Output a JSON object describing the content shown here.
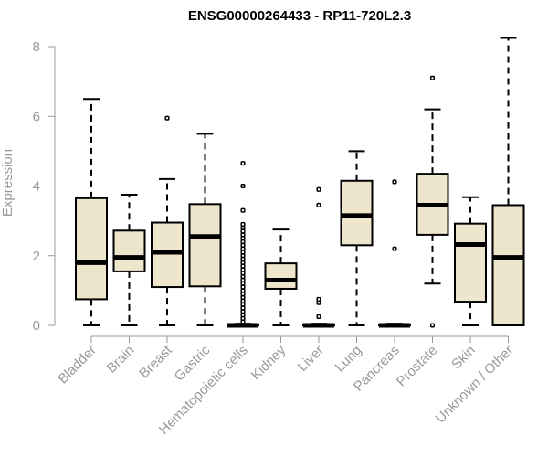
{
  "chart_data": {
    "type": "boxplot",
    "title": "ENSG00000264433 - RP11-720L2.3",
    "xlabel": "",
    "ylabel": "Expression",
    "ylim": [
      0,
      8
    ],
    "yticks": [
      0,
      2,
      4,
      6,
      8
    ],
    "grid": false,
    "box_fill": "#ede6cc",
    "box_stroke": "#000000",
    "axis_color": "#999999",
    "categories": [
      "Bladder",
      "Brain",
      "Breast",
      "Gastric",
      "Hematopoietic cells",
      "Kidney",
      "Liver",
      "Lung",
      "Pancreas",
      "Prostate",
      "Skin",
      "Unknown / Other"
    ],
    "boxes": [
      {
        "q1": 0.75,
        "median": 1.8,
        "q3": 3.65,
        "whisker_low": 0,
        "whisker_high": 6.5,
        "outliers": []
      },
      {
        "q1": 1.55,
        "median": 1.95,
        "q3": 2.72,
        "whisker_low": 0,
        "whisker_high": 3.75,
        "outliers": []
      },
      {
        "q1": 1.1,
        "median": 2.1,
        "q3": 2.95,
        "whisker_low": 0,
        "whisker_high": 4.2,
        "outliers": [
          5.95
        ]
      },
      {
        "q1": 1.12,
        "median": 2.55,
        "q3": 3.48,
        "whisker_low": 0,
        "whisker_high": 5.5,
        "outliers": []
      },
      {
        "q1": 0,
        "median": 0,
        "q3": 0.03,
        "whisker_low": 0,
        "whisker_high": 0.05,
        "outliers": [
          0.1,
          0.2,
          0.3,
          0.4,
          0.5,
          0.6,
          0.7,
          0.8,
          0.9,
          1.0,
          1.1,
          1.2,
          1.3,
          1.4,
          1.5,
          1.6,
          1.7,
          1.8,
          1.9,
          2.0,
          2.1,
          2.2,
          2.3,
          2.4,
          2.5,
          2.6,
          2.7,
          2.8,
          2.9,
          3.3,
          4.0,
          4.65
        ]
      },
      {
        "q1": 1.05,
        "median": 1.3,
        "q3": 1.78,
        "whisker_low": 0,
        "whisker_high": 2.75,
        "outliers": []
      },
      {
        "q1": 0,
        "median": 0,
        "q3": 0.03,
        "whisker_low": 0,
        "whisker_high": 0.05,
        "outliers": [
          0.25,
          0.65,
          0.75,
          3.45,
          3.9
        ]
      },
      {
        "q1": 2.3,
        "median": 3.15,
        "q3": 4.15,
        "whisker_low": 0,
        "whisker_high": 5.0,
        "outliers": []
      },
      {
        "q1": 0,
        "median": 0,
        "q3": 0.03,
        "whisker_low": 0,
        "whisker_high": 0.05,
        "outliers": [
          2.2,
          4.12
        ]
      },
      {
        "q1": 2.6,
        "median": 3.45,
        "q3": 4.35,
        "whisker_low": 1.2,
        "whisker_high": 6.2,
        "outliers": [
          0,
          7.1
        ]
      },
      {
        "q1": 0.68,
        "median": 2.32,
        "q3": 2.92,
        "whisker_low": 0,
        "whisker_high": 3.68,
        "outliers": []
      },
      {
        "q1": 0,
        "median": 1.95,
        "q3": 3.45,
        "whisker_low": 0,
        "whisker_high": 8.25,
        "outliers": []
      }
    ]
  }
}
